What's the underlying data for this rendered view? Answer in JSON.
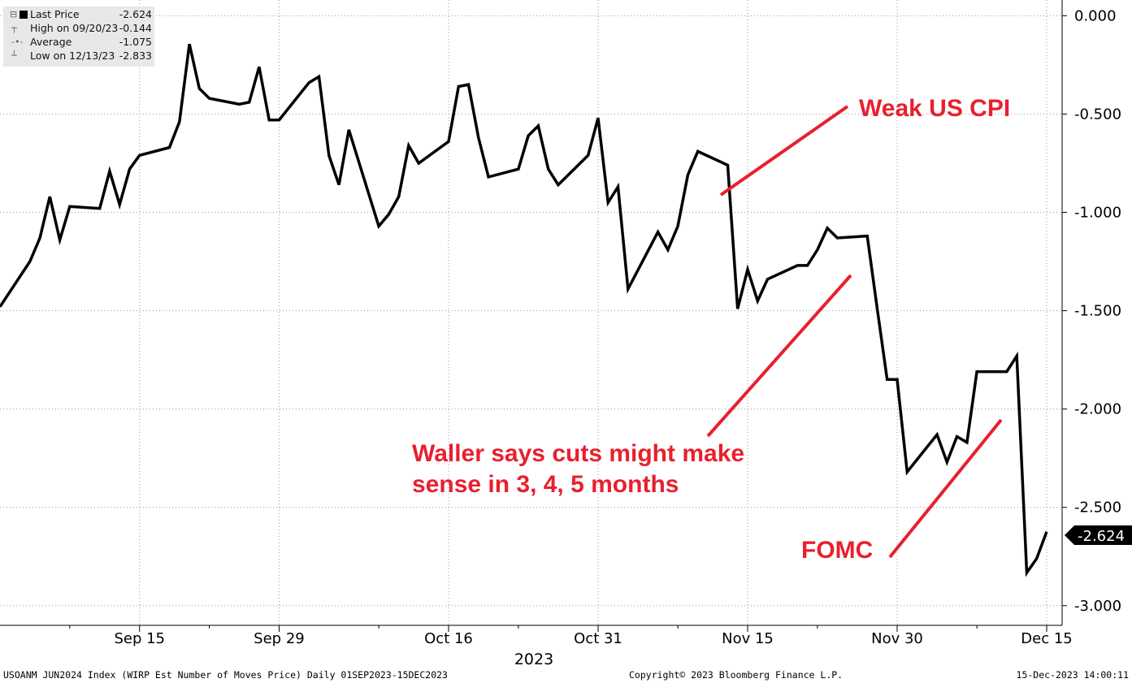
{
  "legend": [
    {
      "label": "Last Price",
      "value": "-2.624"
    },
    {
      "label": "High on 09/20/23",
      "value": "-0.144"
    },
    {
      "label": "Average",
      "value": "-1.075"
    },
    {
      "label": "Low on 12/13/23",
      "value": "-2.833"
    }
  ],
  "footer": {
    "left": "USOANM JUN2024 Index (WIRP Est Number of Moves Price)  Daily 01SEP2023-15DEC2023",
    "center": "Copyright© 2023 Bloomberg Finance L.P.",
    "right": "15-Dec-2023 14:00:11"
  },
  "colors": {
    "line": "#000000",
    "annotation": "#e8202e",
    "grid": "#9a9a9a"
  },
  "chart_data": {
    "type": "line",
    "xlabel": "2023",
    "ylim": [
      -3.1,
      0.08
    ],
    "y_ticks": [
      "0.000",
      "-0.500",
      "-1.000",
      "-1.500",
      "-2.000",
      "-2.500",
      "-3.000"
    ],
    "y_tick_values": [
      0,
      -0.5,
      -1.0,
      -1.5,
      -2.0,
      -2.5,
      -3.0
    ],
    "x_ticks": [
      {
        "label": "Sep 15",
        "date": "2023-09-15"
      },
      {
        "label": "Sep 29",
        "date": "2023-09-29"
      },
      {
        "label": "Oct 16",
        "date": "2023-10-16"
      },
      {
        "label": "Oct 31",
        "date": "2023-10-31"
      },
      {
        "label": "Nov 15",
        "date": "2023-11-15"
      },
      {
        "label": "Nov 30",
        "date": "2023-11-30"
      },
      {
        "label": "Dec 15",
        "date": "2023-12-15"
      }
    ],
    "last_value_label": "-2.624",
    "series": [
      {
        "values": [
          {
            "x": "2023-09-01",
            "y": -1.48
          },
          {
            "x": "2023-09-04",
            "y": -1.25
          },
          {
            "x": "2023-09-05",
            "y": -1.13
          },
          {
            "x": "2023-09-06",
            "y": -0.92
          },
          {
            "x": "2023-09-07",
            "y": -1.14
          },
          {
            "x": "2023-09-08",
            "y": -0.97
          },
          {
            "x": "2023-09-11",
            "y": -0.98
          },
          {
            "x": "2023-09-12",
            "y": -0.79
          },
          {
            "x": "2023-09-13",
            "y": -0.96
          },
          {
            "x": "2023-09-14",
            "y": -0.78
          },
          {
            "x": "2023-09-15",
            "y": -0.71
          },
          {
            "x": "2023-09-18",
            "y": -0.67
          },
          {
            "x": "2023-09-19",
            "y": -0.54
          },
          {
            "x": "2023-09-20",
            "y": -0.144
          },
          {
            "x": "2023-09-21",
            "y": -0.37
          },
          {
            "x": "2023-09-22",
            "y": -0.42
          },
          {
            "x": "2023-09-25",
            "y": -0.45
          },
          {
            "x": "2023-09-26",
            "y": -0.44
          },
          {
            "x": "2023-09-27",
            "y": -0.26
          },
          {
            "x": "2023-09-28",
            "y": -0.53
          },
          {
            "x": "2023-09-29",
            "y": -0.53
          },
          {
            "x": "2023-10-02",
            "y": -0.34
          },
          {
            "x": "2023-10-03",
            "y": -0.31
          },
          {
            "x": "2023-10-04",
            "y": -0.71
          },
          {
            "x": "2023-10-05",
            "y": -0.86
          },
          {
            "x": "2023-10-06",
            "y": -0.58
          },
          {
            "x": "2023-10-09",
            "y": -1.07
          },
          {
            "x": "2023-10-10",
            "y": -1.01
          },
          {
            "x": "2023-10-11",
            "y": -0.92
          },
          {
            "x": "2023-10-12",
            "y": -0.66
          },
          {
            "x": "2023-10-13",
            "y": -0.75
          },
          {
            "x": "2023-10-16",
            "y": -0.64
          },
          {
            "x": "2023-10-17",
            "y": -0.36
          },
          {
            "x": "2023-10-18",
            "y": -0.35
          },
          {
            "x": "2023-10-19",
            "y": -0.62
          },
          {
            "x": "2023-10-20",
            "y": -0.82
          },
          {
            "x": "2023-10-23",
            "y": -0.78
          },
          {
            "x": "2023-10-24",
            "y": -0.61
          },
          {
            "x": "2023-10-25",
            "y": -0.56
          },
          {
            "x": "2023-10-26",
            "y": -0.78
          },
          {
            "x": "2023-10-27",
            "y": -0.86
          },
          {
            "x": "2023-10-30",
            "y": -0.71
          },
          {
            "x": "2023-10-31",
            "y": -0.52
          },
          {
            "x": "2023-11-01",
            "y": -0.95
          },
          {
            "x": "2023-11-02",
            "y": -0.87
          },
          {
            "x": "2023-11-03",
            "y": -1.39
          },
          {
            "x": "2023-11-06",
            "y": -1.1
          },
          {
            "x": "2023-11-07",
            "y": -1.19
          },
          {
            "x": "2023-11-08",
            "y": -1.07
          },
          {
            "x": "2023-11-09",
            "y": -0.81
          },
          {
            "x": "2023-11-10",
            "y": -0.69
          },
          {
            "x": "2023-11-13",
            "y": -0.76
          },
          {
            "x": "2023-11-14",
            "y": -1.49
          },
          {
            "x": "2023-11-15",
            "y": -1.29
          },
          {
            "x": "2023-11-16",
            "y": -1.45
          },
          {
            "x": "2023-11-17",
            "y": -1.34
          },
          {
            "x": "2023-11-20",
            "y": -1.27
          },
          {
            "x": "2023-11-21",
            "y": -1.27
          },
          {
            "x": "2023-11-22",
            "y": -1.19
          },
          {
            "x": "2023-11-23",
            "y": -1.08
          },
          {
            "x": "2023-11-24",
            "y": -1.13
          },
          {
            "x": "2023-11-27",
            "y": -1.12
          },
          {
            "x": "2023-11-28",
            "y": -1.49
          },
          {
            "x": "2023-11-29",
            "y": -1.85
          },
          {
            "x": "2023-11-30",
            "y": -1.85
          },
          {
            "x": "2023-12-01",
            "y": -2.32
          },
          {
            "x": "2023-12-04",
            "y": -2.13
          },
          {
            "x": "2023-12-05",
            "y": -2.27
          },
          {
            "x": "2023-12-06",
            "y": -2.14
          },
          {
            "x": "2023-12-07",
            "y": -2.17
          },
          {
            "x": "2023-12-08",
            "y": -1.81
          },
          {
            "x": "2023-12-11",
            "y": -1.81
          },
          {
            "x": "2023-12-12",
            "y": -1.73
          },
          {
            "x": "2023-12-13",
            "y": -2.833
          },
          {
            "x": "2023-12-14",
            "y": -2.76
          },
          {
            "x": "2023-12-15",
            "y": -2.624
          }
        ]
      }
    ],
    "annotations": [
      {
        "text": "Weak US CPI",
        "date": "2023-11-14"
      },
      {
        "text": "Waller says cuts might make sense in 3, 4, 5 months",
        "date": "2023-11-28"
      },
      {
        "text": "FOMC",
        "date": "2023-12-13"
      }
    ]
  }
}
